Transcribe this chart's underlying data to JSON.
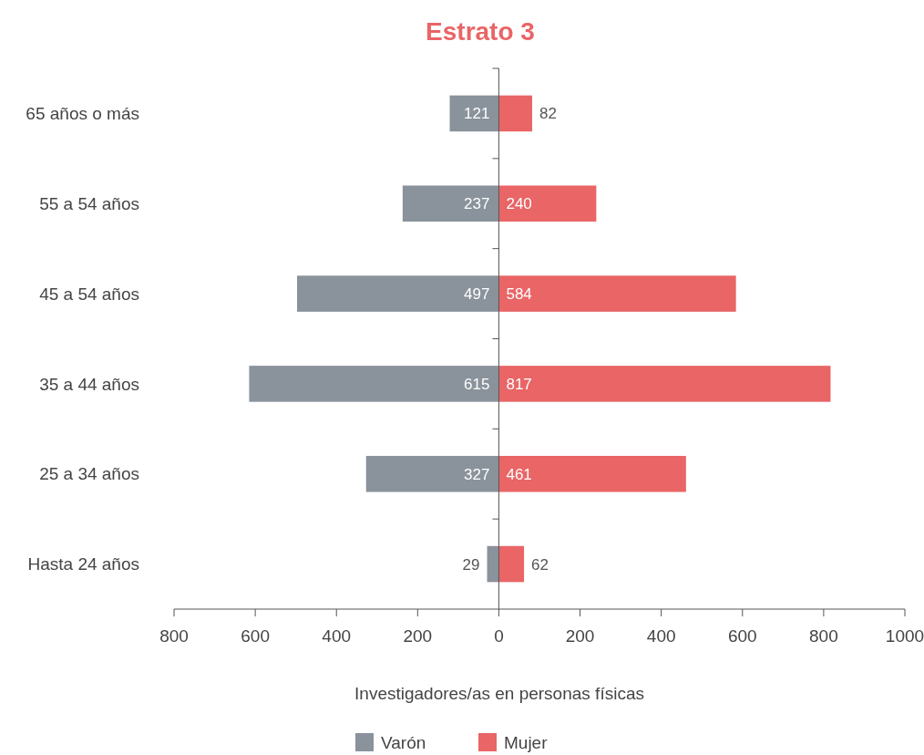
{
  "chart_data": {
    "type": "bar",
    "orientation": "horizontal",
    "title": "Estrato 3",
    "xlabel": "Investigadores/as en personas físicas",
    "categories": [
      "65 años o más",
      "55 a 54 años",
      "45 a 54 años",
      "35 a 44 años",
      "25 a 34 años",
      "Hasta 24 años"
    ],
    "series": [
      {
        "name": "Varón",
        "color": "#8a929b",
        "values": [
          121,
          237,
          497,
          615,
          327,
          29
        ],
        "base": [
          -121,
          -237,
          -497,
          -615,
          -327,
          -29
        ]
      },
      {
        "name": "Mujer",
        "color": "#e96566",
        "values": [
          82,
          240,
          584,
          817,
          461,
          62
        ],
        "base": [
          0,
          0,
          0,
          0,
          0,
          0
        ]
      }
    ],
    "data_labels": true,
    "xlim": [
      -800,
      1000
    ],
    "xticks": [
      {
        "value": -800,
        "label": "800"
      },
      {
        "value": -600,
        "label": "600"
      },
      {
        "value": -400,
        "label": "400"
      },
      {
        "value": -200,
        "label": "200"
      },
      0,
      200,
      400,
      600,
      800,
      1000
    ],
    "legend": "bottom"
  }
}
